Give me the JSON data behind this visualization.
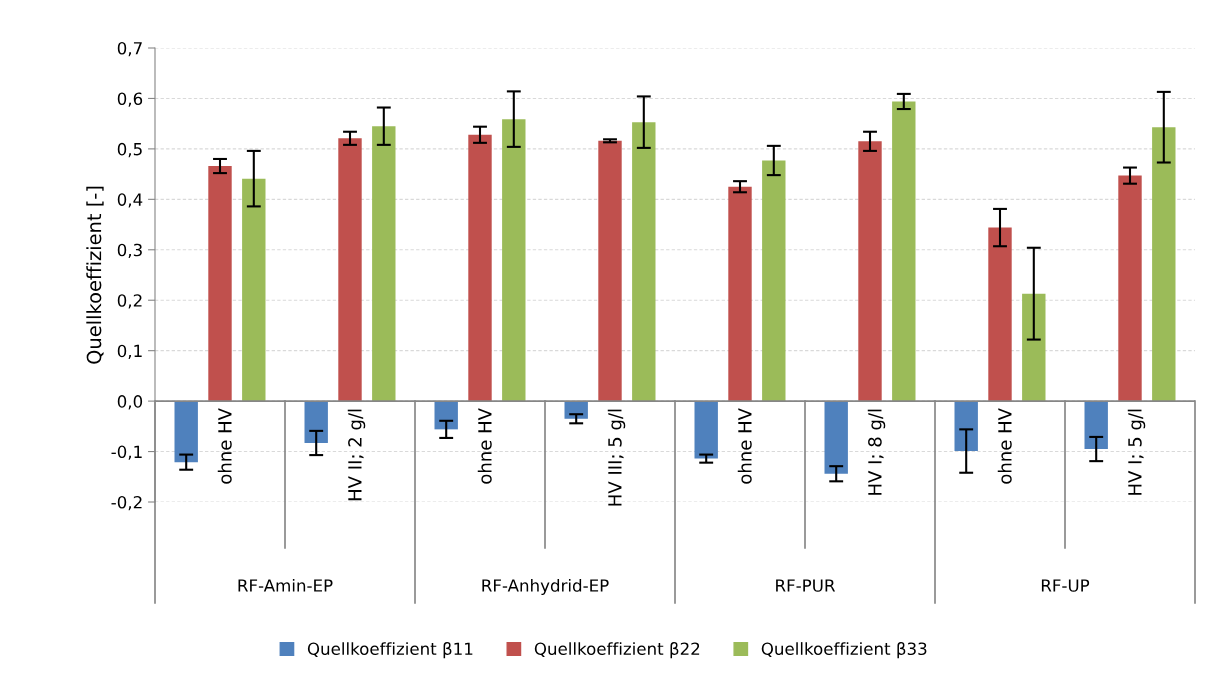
{
  "chart_data": {
    "type": "bar",
    "ylabel": "Quellkoeffizient [-]",
    "categories": [
      "ohne HV",
      "HV II; 2 g/l",
      "ohne HV",
      "HV III; 5 g/l",
      "ohne HV",
      "HV I; 8 g/l",
      "ohne HV",
      "HV I; 5 g/l"
    ],
    "series": [
      {
        "name": "Quellkoeffizient β11",
        "color": "#4f81bd",
        "values": [
          -0.121,
          -0.083,
          -0.056,
          -0.035,
          -0.114,
          -0.144,
          -0.099,
          -0.095
        ],
        "errors": [
          0.015,
          0.024,
          0.017,
          0.009,
          0.008,
          0.015,
          0.043,
          0.024
        ]
      },
      {
        "name": "Quellkoeffizient β22",
        "color": "#c0504d",
        "values": [
          0.466,
          0.521,
          0.528,
          0.516,
          0.425,
          0.515,
          0.344,
          0.447
        ],
        "errors": [
          0.014,
          0.013,
          0.016,
          0.003,
          0.011,
          0.019,
          0.037,
          0.016
        ]
      },
      {
        "name": "Quellkoeffizient β33",
        "color": "#9bbb59",
        "values": [
          0.441,
          0.545,
          0.559,
          0.553,
          0.477,
          0.594,
          0.213,
          0.543
        ],
        "errors": [
          0.055,
          0.037,
          0.055,
          0.051,
          0.029,
          0.015,
          0.091,
          0.07
        ]
      }
    ],
    "annotations": [
      "RF-Amin-EP",
      "RF-Anhydrid-EP",
      "RF-PUR",
      "RF-UP"
    ],
    "ylim": [
      -0.2,
      0.7
    ],
    "yticks": [
      {
        "value": -0.2,
        "label": "-0,2"
      },
      {
        "value": -0.1,
        "label": "-0,1"
      },
      {
        "value": 0,
        "label": "0,0"
      },
      {
        "value": 0.1,
        "label": "0,1"
      },
      {
        "value": 0.2,
        "label": "0,2"
      },
      {
        "value": 0.3,
        "label": "0,3"
      },
      {
        "value": 0.4,
        "label": "0,4"
      },
      {
        "value": 0.5,
        "label": "0,5"
      },
      {
        "value": 0.6,
        "label": "0,6"
      },
      {
        "value": 0.7,
        "label": "0,7"
      }
    ],
    "grid": "y",
    "legend": "bottom"
  }
}
